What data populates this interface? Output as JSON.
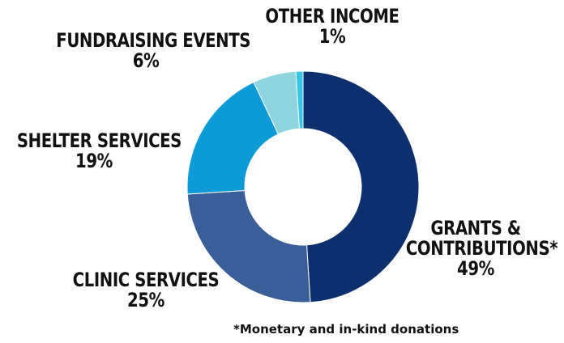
{
  "chart_data": {
    "type": "pie",
    "donut": true,
    "slices": [
      {
        "name": "GRANTS & CONTRIBUTIONS*",
        "value": 49,
        "label": "49%",
        "color": "#0d2f6e"
      },
      {
        "name": "CLINIC SERVICES",
        "value": 25,
        "label": "25%",
        "color": "#3a5f98"
      },
      {
        "name": "SHELTER SERVICES",
        "value": 19,
        "label": "19%",
        "color": "#0d9bd7"
      },
      {
        "name": "FUNDRAISING EVENTS",
        "value": 6,
        "label": "6%",
        "color": "#8dd4df"
      },
      {
        "name": "OTHER INCOME",
        "value": 1,
        "label": "1%",
        "color": "#35c6e8"
      }
    ],
    "footnote": "*Monetary and in-kind donations"
  },
  "labels": {
    "grants_a": "GRANTS &",
    "grants_b": "CONTRIBUTIONS*",
    "grants_pct": "49%",
    "clinic": "CLINIC SERVICES",
    "clinic_pct": "25%",
    "shelter": "SHELTER SERVICES",
    "shelter_pct": "19%",
    "fund": "FUNDRAISING EVENTS",
    "fund_pct": "6%",
    "other": "OTHER INCOME",
    "other_pct": "1%"
  }
}
